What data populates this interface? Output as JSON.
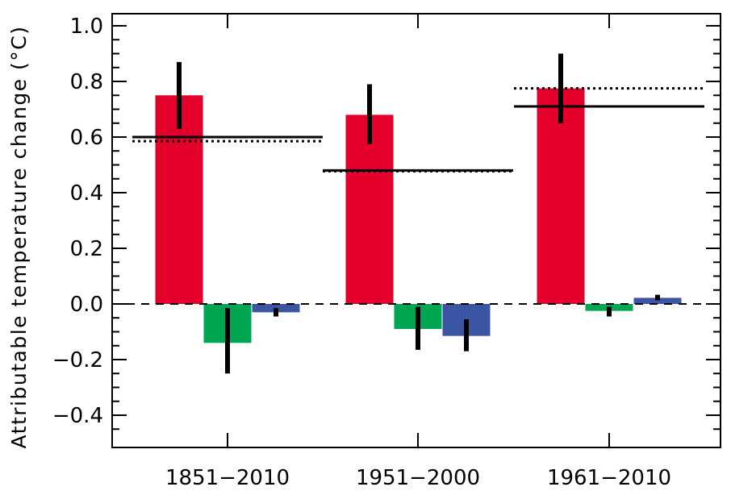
{
  "chart_data": {
    "type": "bar",
    "title": "",
    "xlabel": "",
    "ylabel": "Attributable temperature change (°C)",
    "ylim": [
      -0.5,
      1.05
    ],
    "yticks": [
      -0.4,
      -0.2,
      0.0,
      0.2,
      0.4,
      0.6,
      0.8,
      1.0
    ],
    "ytick_labels": [
      "−0.4",
      "−0.2",
      "0.0",
      "0.2",
      "0.4",
      "0.6",
      "0.8",
      "1.0"
    ],
    "categories": [
      "1851−2010",
      "1951−2000",
      "1961−2010"
    ],
    "series": [
      {
        "color": "#e4002b",
        "values": [
          0.75,
          0.68,
          0.775
        ],
        "error_low": [
          0.63,
          0.575,
          0.65
        ],
        "error_high": [
          0.87,
          0.79,
          0.9
        ]
      },
      {
        "color": "#00a651",
        "values": [
          -0.14,
          -0.09,
          -0.025
        ],
        "error_low": [
          -0.25,
          -0.165,
          -0.045
        ],
        "error_high": [
          -0.015,
          -0.01,
          -0.01
        ]
      },
      {
        "color": "#3b54a4",
        "values": [
          -0.03,
          -0.115,
          0.022
        ],
        "error_low": [
          -0.045,
          -0.17,
          0.013
        ],
        "error_high": [
          -0.015,
          -0.055,
          0.033
        ]
      }
    ],
    "reference_lines": {
      "solid": [
        0.6,
        0.48,
        0.71
      ],
      "dotted": [
        0.585,
        0.477,
        0.775
      ]
    },
    "zero_line": "dashed",
    "grid": false
  }
}
